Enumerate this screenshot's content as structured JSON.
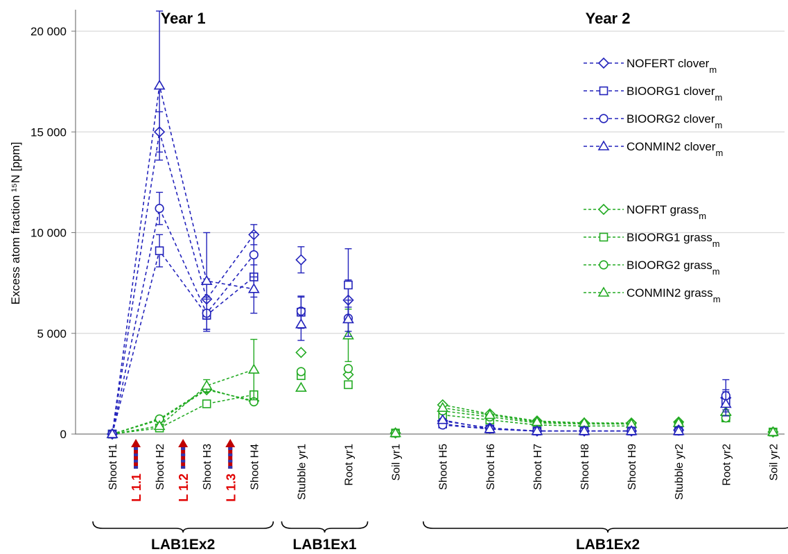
{
  "chart_data": {
    "type": "line",
    "ylabel": "Excess atom fraction ¹⁵N [ppm]",
    "ylim": [
      0,
      20000
    ],
    "yticks": [
      0,
      5000,
      10000,
      15000,
      20000
    ],
    "ytick_labels": [
      "0",
      "5 000",
      "10 000",
      "15 000",
      "20 000"
    ],
    "grid": "horizontal",
    "legend_position": "right",
    "categories": [
      "Shoot H1",
      "Shoot H2",
      "Shoot H3",
      "Shoot H4",
      "Stubble yr1",
      "Root yr1",
      "Soil yr1",
      "Shoot H5",
      "Shoot H6",
      "Shoot H7",
      "Shoot H8",
      "Shoot H9",
      "Stubble yr2",
      "Root yr2",
      "Soil yr2"
    ],
    "year_titles": [
      {
        "text": "Year 1",
        "between": [
          1,
          2
        ]
      },
      {
        "text": "Year 2",
        "between": [
          10,
          11
        ]
      }
    ],
    "group_labels": [
      {
        "text": "LAB1Ex2",
        "from": 0,
        "to": 3
      },
      {
        "text": "LAB1Ex1",
        "from": 4,
        "to": 5
      },
      {
        "text": "LAB1Ex2",
        "from": 7,
        "to": 14
      }
    ],
    "labeling_events": [
      {
        "text": "L 1.1",
        "at": 0.5
      },
      {
        "text": "L 1.2",
        "at": 1.5
      },
      {
        "text": "L 1.3",
        "at": 2.5
      }
    ],
    "connected_ranges": [
      [
        0,
        3
      ],
      [
        7,
        11
      ]
    ],
    "series": [
      {
        "name": "NOFERT",
        "subscript_base": "clover",
        "marker": "diamond",
        "color": "#2222bb",
        "values": [
          0,
          15000,
          6700,
          9900,
          8650,
          6650,
          null,
          650,
          300,
          150,
          150,
          150,
          200,
          1800,
          null
        ],
        "errors": [
          0,
          1000,
          1000,
          500,
          650,
          1000,
          null,
          0,
          0,
          0,
          0,
          0,
          0,
          400,
          null
        ]
      },
      {
        "name": "BIOORG1",
        "subscript_base": "clover",
        "marker": "square",
        "color": "#2222bb",
        "values": [
          0,
          9100,
          5900,
          7800,
          6050,
          7400,
          null,
          500,
          250,
          150,
          150,
          150,
          150,
          1600,
          null
        ],
        "errors": [
          0,
          800,
          800,
          1000,
          800,
          1800,
          null,
          0,
          0,
          0,
          0,
          0,
          0,
          400,
          null
        ]
      },
      {
        "name": "BIOORG2",
        "subscript_base": "clover",
        "marker": "circle",
        "color": "#2222bb",
        "values": [
          0,
          11200,
          6000,
          8900,
          6100,
          5750,
          null,
          450,
          250,
          150,
          150,
          150,
          150,
          1900,
          null
        ],
        "errors": [
          0,
          800,
          800,
          1100,
          700,
          900,
          null,
          0,
          0,
          0,
          0,
          0,
          0,
          800,
          null
        ]
      },
      {
        "name": "CONMIN2",
        "subscript_base": "clover",
        "marker": "triangle",
        "color": "#2222bb",
        "values": [
          0,
          17300,
          7600,
          7200,
          5450,
          5700,
          null,
          700,
          250,
          150,
          150,
          150,
          150,
          1500,
          null
        ],
        "errors": [
          0,
          3700,
          2400,
          1200,
          800,
          600,
          null,
          0,
          0,
          0,
          0,
          0,
          0,
          600,
          null
        ]
      },
      {
        "name": "NOFRT",
        "subscript_base": "grass",
        "marker": "diamond",
        "color": "#22aa22",
        "values": [
          0,
          700,
          2200,
          1650,
          4050,
          2950,
          50,
          1450,
          1000,
          650,
          550,
          550,
          600,
          950,
          100
        ],
        "errors": [
          0,
          0,
          0,
          0,
          0,
          0,
          0,
          0,
          0,
          0,
          0,
          0,
          0,
          0,
          0
        ]
      },
      {
        "name": "BIOORG1",
        "subscript_base": "grass",
        "marker": "square",
        "color": "#22aa22",
        "values": [
          0,
          300,
          1500,
          1950,
          2900,
          2450,
          50,
          950,
          700,
          450,
          400,
          400,
          400,
          800,
          100
        ],
        "errors": [
          0,
          0,
          0,
          0,
          0,
          0,
          0,
          0,
          0,
          0,
          0,
          0,
          0,
          0,
          0
        ]
      },
      {
        "name": "BIOORG2",
        "subscript_base": "grass",
        "marker": "circle",
        "color": "#22aa22",
        "values": [
          0,
          750,
          2250,
          1600,
          3100,
          3250,
          50,
          1150,
          850,
          550,
          500,
          500,
          500,
          800,
          100
        ],
        "errors": [
          0,
          0,
          0,
          0,
          0,
          0,
          0,
          0,
          0,
          0,
          0,
          0,
          0,
          0,
          0
        ]
      },
      {
        "name": "CONMIN2",
        "subscript_base": "grass",
        "marker": "triangle",
        "color": "#22aa22",
        "values": [
          0,
          400,
          2400,
          3200,
          2300,
          4900,
          50,
          1300,
          950,
          600,
          550,
          500,
          550,
          1100,
          100
        ],
        "errors": [
          0,
          0,
          300,
          1500,
          0,
          1300,
          0,
          0,
          0,
          0,
          0,
          0,
          0,
          0,
          0
        ]
      }
    ],
    "legend_subscript": "m"
  }
}
